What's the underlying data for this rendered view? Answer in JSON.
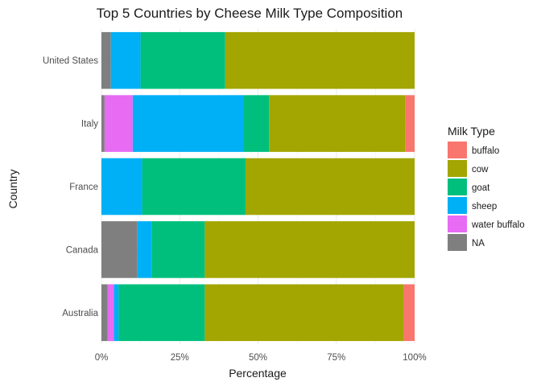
{
  "chart_data": {
    "type": "bar",
    "orientation": "horizontal",
    "stacked": true,
    "title": "Top 5 Countries by Cheese Milk Type Composition",
    "xlabel": "Percentage",
    "ylabel": "Country",
    "xlim": [
      0,
      100
    ],
    "x_ticks": [
      "0%",
      "25%",
      "50%",
      "75%",
      "100%"
    ],
    "x_tick_values": [
      0,
      25,
      50,
      75,
      100
    ],
    "categories": [
      "United States",
      "Italy",
      "France",
      "Canada",
      "Australia"
    ],
    "series": [
      {
        "name": "NA",
        "color": "#7f7f7f",
        "values": [
          3.0,
          1.0,
          0.0,
          11.5,
          2.0
        ]
      },
      {
        "name": "water buffalo",
        "color": "#e76bf3",
        "values": [
          0.0,
          9.0,
          0.0,
          0.0,
          2.0
        ]
      },
      {
        "name": "sheep",
        "color": "#00b0f6",
        "values": [
          9.5,
          35.5,
          13.0,
          4.5,
          1.5
        ]
      },
      {
        "name": "goat",
        "color": "#00bf7d",
        "values": [
          27.0,
          8.0,
          33.0,
          17.0,
          27.5
        ]
      },
      {
        "name": "cow",
        "color": "#a3a500",
        "values": [
          60.5,
          43.5,
          54.0,
          67.0,
          63.5
        ]
      },
      {
        "name": "buffalo",
        "color": "#f8766d",
        "values": [
          0.0,
          3.0,
          0.0,
          0.0,
          3.5
        ]
      }
    ],
    "legend": {
      "title": "Milk Type",
      "placement": "right",
      "entries": [
        {
          "label": "buffalo",
          "color": "#f8766d"
        },
        {
          "label": "cow",
          "color": "#a3a500"
        },
        {
          "label": "goat",
          "color": "#00bf7d"
        },
        {
          "label": "sheep",
          "color": "#00b0f6"
        },
        {
          "label": "water buffalo",
          "color": "#e76bf3"
        },
        {
          "label": "NA",
          "color": "#7f7f7f"
        }
      ]
    },
    "grid": true
  }
}
